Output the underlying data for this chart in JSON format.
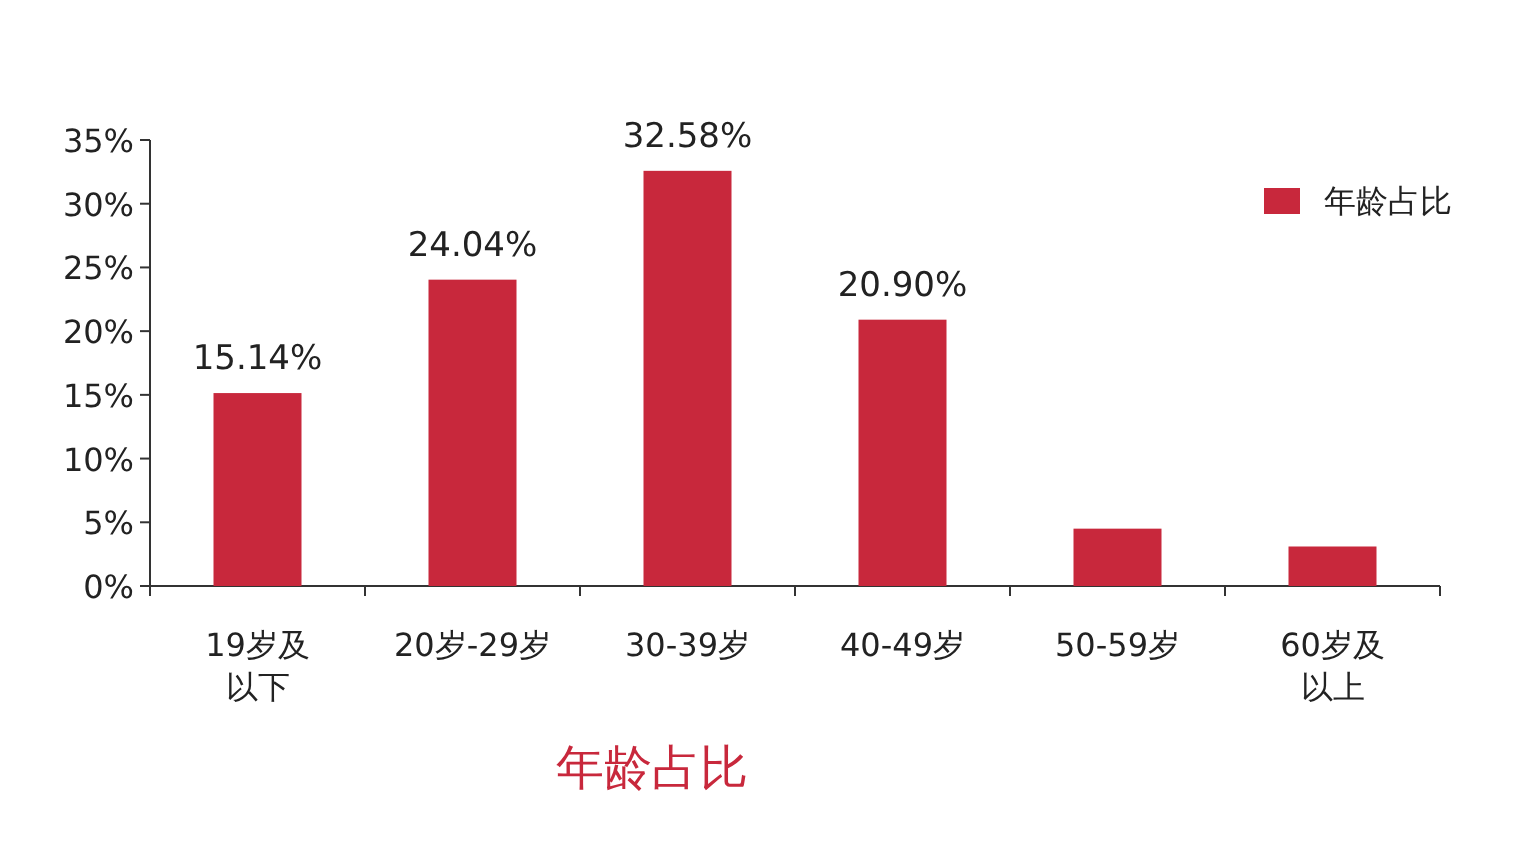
{
  "chart_data": {
    "type": "bar",
    "xlabel": "年龄占比",
    "categories": [
      "19岁及以下",
      "20岁-29岁",
      "30-39岁",
      "40-49岁",
      "50-59岁",
      "60岁及以上"
    ],
    "series": [
      {
        "name": "年龄占比",
        "color": "#c8283c",
        "values": [
          15.14,
          24.04,
          32.58,
          20.9,
          4.5,
          3.1
        ],
        "value_labels": [
          "15.14%",
          "24.04%",
          "32.58%",
          "20.90%",
          null,
          null
        ]
      }
    ],
    "ylim": [
      0,
      35
    ],
    "yticks": [
      {
        "value": 0,
        "label": "0%"
      },
      {
        "value": 5,
        "label": "5%"
      },
      {
        "value": 10,
        "label": "10%"
      },
      {
        "value": 15,
        "label": "15%"
      },
      {
        "value": 20,
        "label": "20%"
      },
      {
        "value": 25,
        "label": "25%"
      },
      {
        "value": 30,
        "label": "30%"
      },
      {
        "value": 35,
        "label": "35%"
      }
    ],
    "grid": false,
    "legend": "top right"
  }
}
